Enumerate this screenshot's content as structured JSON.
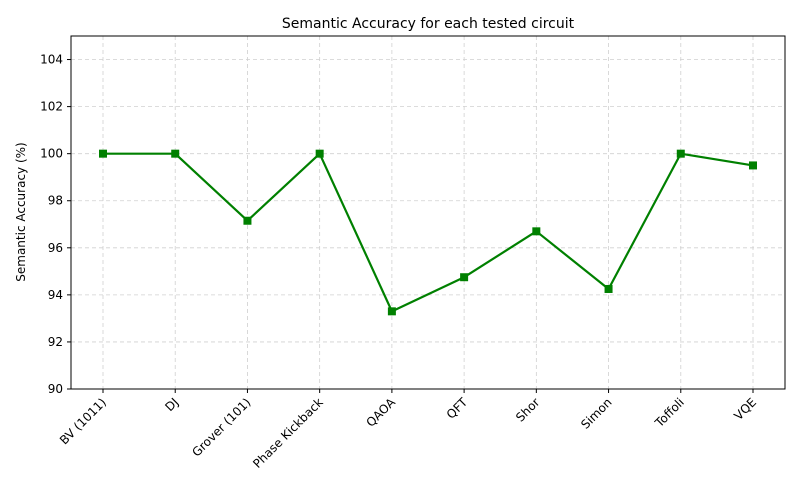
{
  "chart_data": {
    "type": "line",
    "title": "Semantic Accuracy for each tested circuit",
    "xlabel": "",
    "ylabel": "Semantic Accuracy (%)",
    "categories": [
      "BV (1011)",
      "DJ",
      "Grover (101)",
      "Phase Kickback",
      "QAOA",
      "QFT",
      "Shor",
      "Simon",
      "Toffoli",
      "VQE"
    ],
    "series": [
      {
        "values": [
          100.0,
          100.0,
          97.15,
          100.0,
          93.3,
          94.75,
          96.7,
          94.25,
          100.0,
          99.5
        ],
        "color": "#008000",
        "marker": "square"
      }
    ],
    "ylim": [
      90,
      105
    ],
    "yticks": [
      90,
      92,
      94,
      96,
      98,
      100,
      102,
      104
    ],
    "grid": true
  }
}
